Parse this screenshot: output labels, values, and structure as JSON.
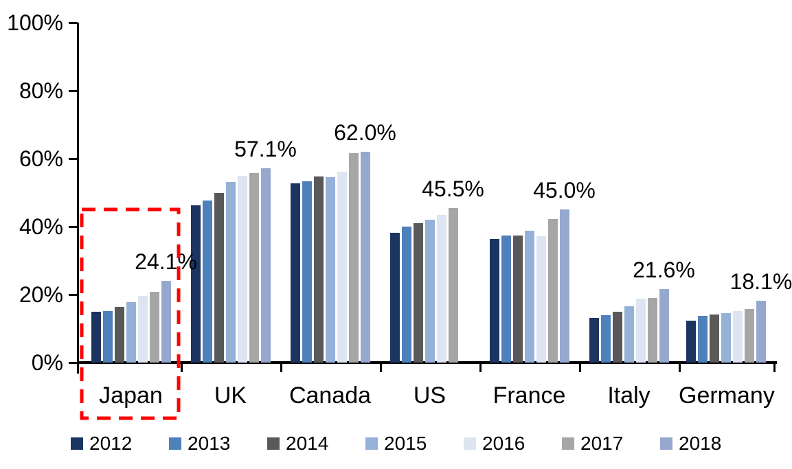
{
  "chart_data": {
    "type": "bar",
    "title": "",
    "categories": [
      "Japan",
      "UK",
      "Canada",
      "US",
      "France",
      "Italy",
      "Germany"
    ],
    "series": [
      {
        "name": "2012",
        "color": "#1B3560",
        "values": [
          14.9,
          46.3,
          52.7,
          38.2,
          36.4,
          13.1,
          12.3
        ]
      },
      {
        "name": "2013",
        "color": "#4E80BC",
        "values": [
          15.1,
          47.7,
          53.3,
          40.0,
          37.4,
          13.9,
          13.7
        ]
      },
      {
        "name": "2014",
        "color": "#595959",
        "values": [
          16.4,
          49.9,
          54.7,
          41.0,
          37.4,
          14.9,
          14.1
        ]
      },
      {
        "name": "2015",
        "color": "#95B1D8",
        "values": [
          17.7,
          53.1,
          54.5,
          42.0,
          38.8,
          16.6,
          14.5
        ]
      },
      {
        "name": "2016",
        "color": "#DCE5F1",
        "values": [
          19.5,
          54.9,
          56.2,
          43.4,
          37.2,
          18.8,
          15.2
        ]
      },
      {
        "name": "2017",
        "color": "#A6A6A6",
        "values": [
          20.9,
          55.8,
          61.6,
          45.5,
          42.2,
          19.0,
          15.8
        ]
      },
      {
        "name": "2018",
        "color": "#97A8CF",
        "values": [
          24.1,
          57.1,
          62.0,
          null,
          45.0,
          21.6,
          18.1
        ]
      }
    ],
    "data_labels": [
      "24.1%",
      "57.1%",
      "62.0%",
      "45.5%",
      "45.0%",
      "21.6%",
      "18.1%"
    ],
    "y_axis": {
      "ticks": [
        "100%",
        "80%",
        "60%",
        "40%",
        "20%",
        "0%"
      ],
      "min": 0,
      "max": 100,
      "unit": "%"
    },
    "grid": false,
    "legend": {
      "position": "bottom",
      "entries": [
        "2012",
        "2013",
        "2014",
        "2015",
        "2016",
        "2017",
        "2018"
      ]
    },
    "highlight": {
      "category": "Japan",
      "style": "dashed-box",
      "color": "#FF0000"
    }
  }
}
